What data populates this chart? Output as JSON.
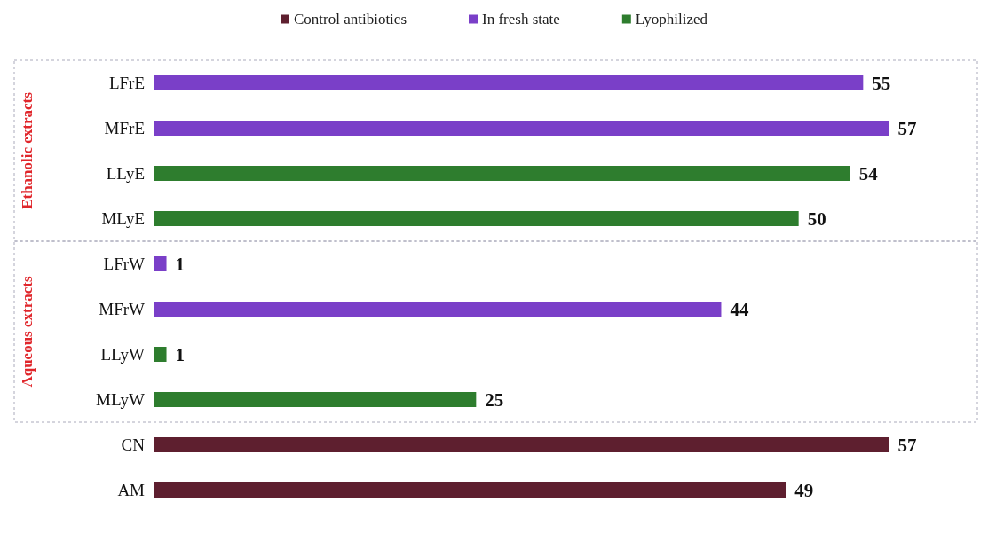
{
  "chart_data": {
    "type": "bar",
    "orientation": "horizontal",
    "stacked": true,
    "categories": [
      "LFrE",
      "MFrE",
      "LLyE",
      "MLyE",
      "LFrW",
      "MFrW",
      "LLyW",
      "MLyW",
      "CN",
      "AM"
    ],
    "series": [
      {
        "name": "Control antibiotics",
        "color": "#5e1f2f",
        "values": [
          null,
          null,
          null,
          null,
          null,
          null,
          null,
          null,
          57,
          49
        ]
      },
      {
        "name": "In fresh state",
        "color": "#7a3fc8",
        "values": [
          55,
          57,
          null,
          null,
          1,
          44,
          null,
          null,
          null,
          null
        ]
      },
      {
        "name": "Lyophilized",
        "color": "#2e7d2e",
        "values": [
          null,
          null,
          54,
          50,
          null,
          null,
          1,
          25,
          null,
          null
        ]
      }
    ],
    "annotations": [
      "Ethanolic extracts",
      "Aqueous extracts"
    ],
    "data_labels": true,
    "legend": "top",
    "tick_labels": "y"
  }
}
